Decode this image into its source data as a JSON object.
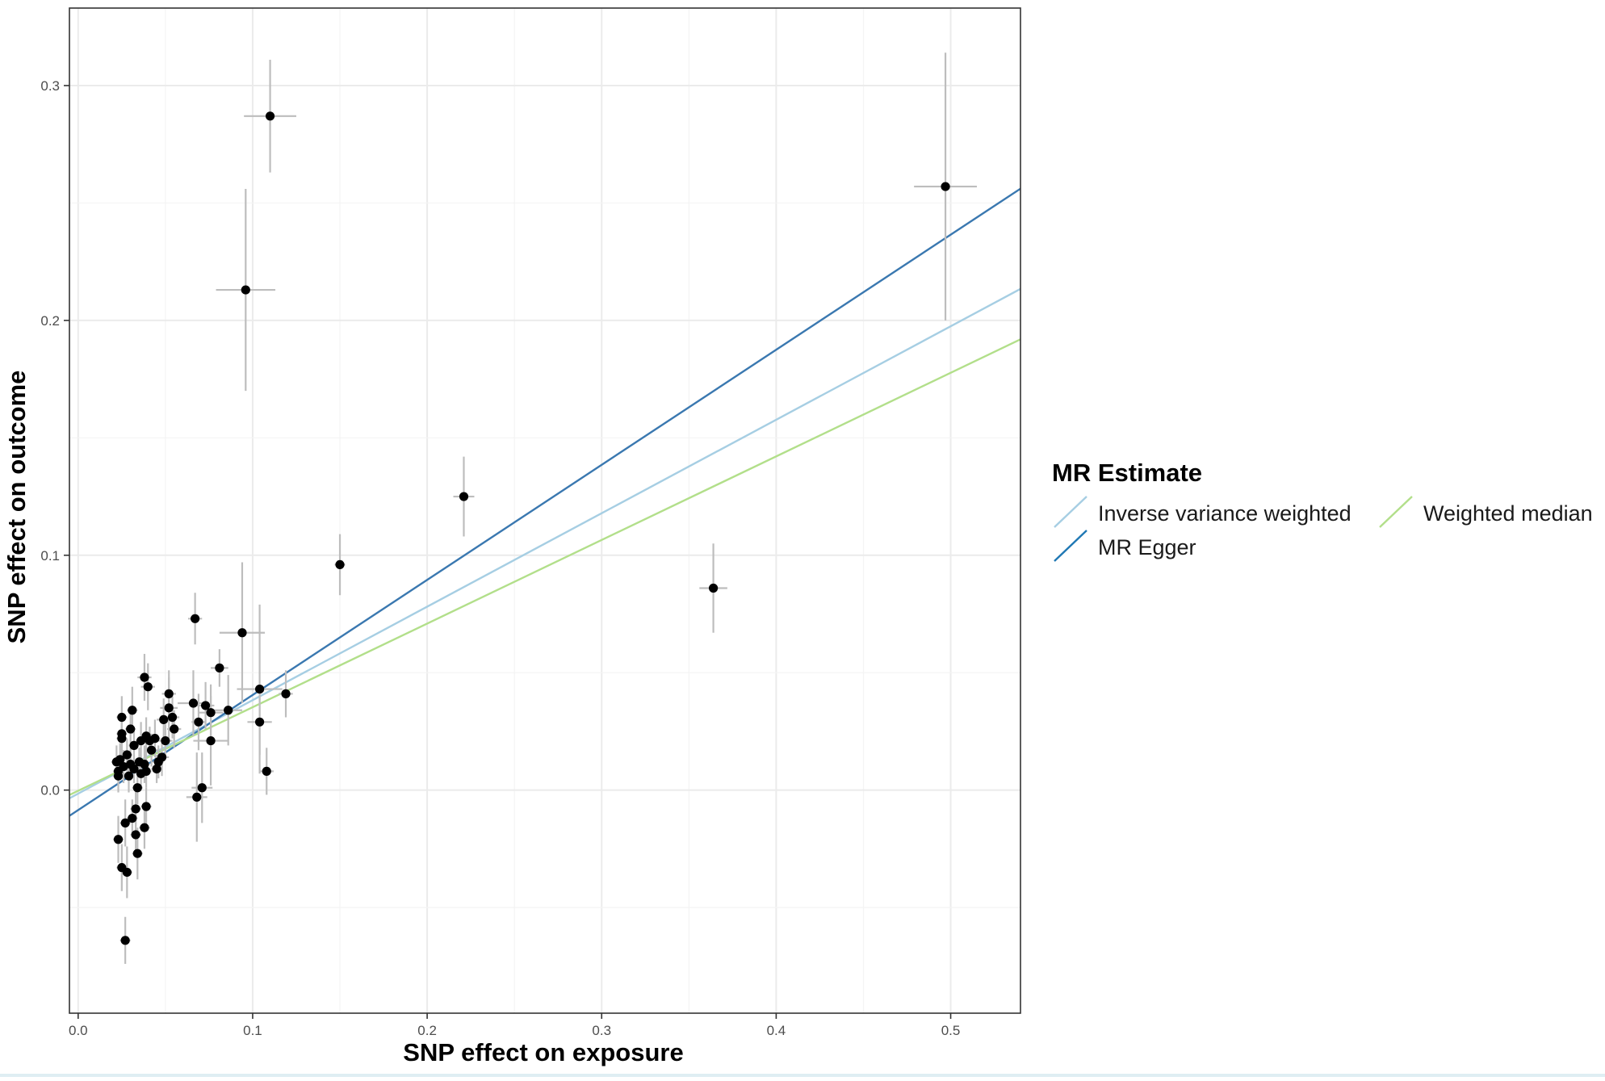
{
  "chart_data": {
    "type": "scatter",
    "title": "",
    "xlabel": "SNP effect on exposure",
    "ylabel": "SNP effect on outcome",
    "xlim": [
      -0.005,
      0.54
    ],
    "ylim": [
      -0.095,
      0.333
    ],
    "x_ticks": [
      0.0,
      0.1,
      0.2,
      0.3,
      0.4,
      0.5
    ],
    "x_tick_labels": [
      "0.0",
      "0.1",
      "0.2",
      "0.3",
      "0.4",
      "0.5"
    ],
    "y_ticks": [
      0.0,
      0.1,
      0.2,
      0.3
    ],
    "y_tick_labels": [
      "0.0",
      "0.1",
      "0.2",
      "0.3"
    ],
    "grid": true,
    "legend": {
      "title": "MR Estimate",
      "placement": "right",
      "entries": [
        {
          "label": "Inverse variance weighted",
          "color": "#a6cee3"
        },
        {
          "label": "MR Egger",
          "color": "#1f78b4"
        },
        {
          "label": "Weighted median",
          "color": "#b2df8a"
        }
      ]
    },
    "lines": [
      {
        "name": "Inverse variance weighted",
        "color": "#a6cee3",
        "intercept": -0.0015,
        "slope": 0.398
      },
      {
        "name": "MR Egger",
        "color": "#3a78b0",
        "intercept": -0.0085,
        "slope": 0.49
      },
      {
        "name": "Weighted median",
        "color": "#b2df8a",
        "intercept": -0.0003,
        "slope": 0.356
      }
    ],
    "points": [
      {
        "x": 0.11,
        "y": 0.287,
        "xse": 0.015,
        "yse": 0.024
      },
      {
        "x": 0.096,
        "y": 0.213,
        "xse": 0.017,
        "yse": 0.043
      },
      {
        "x": 0.497,
        "y": 0.257,
        "xse": 0.018,
        "yse": 0.057
      },
      {
        "x": 0.221,
        "y": 0.125,
        "xse": 0.006,
        "yse": 0.017
      },
      {
        "x": 0.15,
        "y": 0.096,
        "xse": 0.003,
        "yse": 0.013
      },
      {
        "x": 0.364,
        "y": 0.086,
        "xse": 0.008,
        "yse": 0.019
      },
      {
        "x": 0.067,
        "y": 0.073,
        "xse": 0.004,
        "yse": 0.011
      },
      {
        "x": 0.094,
        "y": 0.067,
        "xse": 0.013,
        "yse": 0.03
      },
      {
        "x": 0.081,
        "y": 0.052,
        "xse": 0.005,
        "yse": 0.008
      },
      {
        "x": 0.119,
        "y": 0.041,
        "xse": 0.004,
        "yse": 0.01
      },
      {
        "x": 0.104,
        "y": 0.043,
        "xse": 0.013,
        "yse": 0.036
      },
      {
        "x": 0.104,
        "y": 0.029,
        "xse": 0.007,
        "yse": 0.014
      },
      {
        "x": 0.108,
        "y": 0.008,
        "xse": 0.004,
        "yse": 0.01
      },
      {
        "x": 0.086,
        "y": 0.034,
        "xse": 0.008,
        "yse": 0.015
      },
      {
        "x": 0.073,
        "y": 0.036,
        "xse": 0.005,
        "yse": 0.01
      },
      {
        "x": 0.076,
        "y": 0.033,
        "xse": 0.007,
        "yse": 0.012
      },
      {
        "x": 0.076,
        "y": 0.021,
        "xse": 0.01,
        "yse": 0.019
      },
      {
        "x": 0.066,
        "y": 0.037,
        "xse": 0.009,
        "yse": 0.014
      },
      {
        "x": 0.071,
        "y": 0.001,
        "xse": 0.006,
        "yse": 0.015
      },
      {
        "x": 0.068,
        "y": -0.003,
        "xse": 0.006,
        "yse": 0.019
      },
      {
        "x": 0.069,
        "y": 0.029,
        "xse": 0.004,
        "yse": 0.012
      },
      {
        "x": 0.054,
        "y": 0.031,
        "xse": 0.004,
        "yse": 0.009
      },
      {
        "x": 0.052,
        "y": 0.035,
        "xse": 0.005,
        "yse": 0.013
      },
      {
        "x": 0.052,
        "y": 0.041,
        "xse": 0.004,
        "yse": 0.01
      },
      {
        "x": 0.055,
        "y": 0.026,
        "xse": 0.004,
        "yse": 0.008
      },
      {
        "x": 0.05,
        "y": 0.021,
        "xse": 0.004,
        "yse": 0.007
      },
      {
        "x": 0.049,
        "y": 0.03,
        "xse": 0.004,
        "yse": 0.009
      },
      {
        "x": 0.048,
        "y": 0.014,
        "xse": 0.004,
        "yse": 0.008
      },
      {
        "x": 0.046,
        "y": 0.012,
        "xse": 0.003,
        "yse": 0.007
      },
      {
        "x": 0.045,
        "y": 0.009,
        "xse": 0.003,
        "yse": 0.006
      },
      {
        "x": 0.044,
        "y": 0.022,
        "xse": 0.003,
        "yse": 0.008
      },
      {
        "x": 0.042,
        "y": 0.017,
        "xse": 0.004,
        "yse": 0.007
      },
      {
        "x": 0.041,
        "y": 0.021,
        "xse": 0.003,
        "yse": 0.006
      },
      {
        "x": 0.04,
        "y": 0.044,
        "xse": 0.004,
        "yse": 0.01
      },
      {
        "x": 0.039,
        "y": 0.023,
        "xse": 0.003,
        "yse": 0.008
      },
      {
        "x": 0.038,
        "y": 0.048,
        "xse": 0.004,
        "yse": 0.01
      },
      {
        "x": 0.039,
        "y": 0.008,
        "xse": 0.003,
        "yse": 0.007
      },
      {
        "x": 0.038,
        "y": 0.011,
        "xse": 0.003,
        "yse": 0.008
      },
      {
        "x": 0.039,
        "y": -0.007,
        "xse": 0.003,
        "yse": 0.008
      },
      {
        "x": 0.038,
        "y": -0.016,
        "xse": 0.003,
        "yse": 0.009
      },
      {
        "x": 0.036,
        "y": 0.021,
        "xse": 0.003,
        "yse": 0.008
      },
      {
        "x": 0.036,
        "y": 0.007,
        "xse": 0.003,
        "yse": 0.006
      },
      {
        "x": 0.035,
        "y": 0.012,
        "xse": 0.003,
        "yse": 0.006
      },
      {
        "x": 0.034,
        "y": 0.001,
        "xse": 0.003,
        "yse": 0.007
      },
      {
        "x": 0.034,
        "y": -0.027,
        "xse": 0.003,
        "yse": 0.011
      },
      {
        "x": 0.033,
        "y": -0.019,
        "xse": 0.003,
        "yse": 0.009
      },
      {
        "x": 0.033,
        "y": -0.008,
        "xse": 0.003,
        "yse": 0.008
      },
      {
        "x": 0.032,
        "y": 0.019,
        "xse": 0.003,
        "yse": 0.008
      },
      {
        "x": 0.032,
        "y": 0.009,
        "xse": 0.003,
        "yse": 0.006
      },
      {
        "x": 0.031,
        "y": 0.034,
        "xse": 0.003,
        "yse": 0.01
      },
      {
        "x": 0.031,
        "y": -0.012,
        "xse": 0.003,
        "yse": 0.008
      },
      {
        "x": 0.03,
        "y": 0.026,
        "xse": 0.003,
        "yse": 0.008
      },
      {
        "x": 0.03,
        "y": 0.011,
        "xse": 0.003,
        "yse": 0.007
      },
      {
        "x": 0.029,
        "y": 0.006,
        "xse": 0.003,
        "yse": 0.007
      },
      {
        "x": 0.028,
        "y": 0.015,
        "xse": 0.003,
        "yse": 0.007
      },
      {
        "x": 0.028,
        "y": -0.035,
        "xse": 0.003,
        "yse": 0.011
      },
      {
        "x": 0.027,
        "y": -0.064,
        "xse": 0.003,
        "yse": 0.01
      },
      {
        "x": 0.027,
        "y": -0.014,
        "xse": 0.003,
        "yse": 0.01
      },
      {
        "x": 0.026,
        "y": 0.01,
        "xse": 0.003,
        "yse": 0.007
      },
      {
        "x": 0.025,
        "y": 0.022,
        "xse": 0.003,
        "yse": 0.008
      },
      {
        "x": 0.025,
        "y": 0.031,
        "xse": 0.003,
        "yse": 0.009
      },
      {
        "x": 0.025,
        "y": 0.024,
        "xse": 0.003,
        "yse": 0.008
      },
      {
        "x": 0.025,
        "y": -0.033,
        "xse": 0.003,
        "yse": 0.01
      },
      {
        "x": 0.024,
        "y": 0.013,
        "xse": 0.003,
        "yse": 0.007
      },
      {
        "x": 0.023,
        "y": 0.006,
        "xse": 0.003,
        "yse": 0.007
      },
      {
        "x": 0.023,
        "y": -0.021,
        "xse": 0.003,
        "yse": 0.01
      },
      {
        "x": 0.022,
        "y": 0.012,
        "xse": 0.003,
        "yse": 0.007
      },
      {
        "x": 0.023,
        "y": 0.008,
        "xse": 0.003,
        "yse": 0.006
      }
    ]
  }
}
